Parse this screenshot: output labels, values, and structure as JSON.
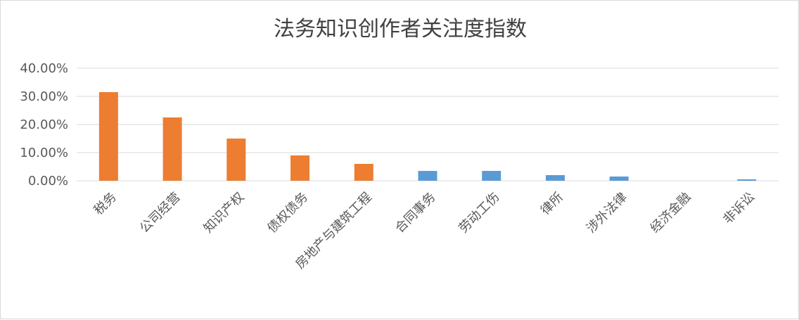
{
  "chart_data": {
    "type": "bar",
    "title": "法务知识创作者关注度指数",
    "xlabel": "",
    "ylabel": "",
    "ylim": [
      0,
      40
    ],
    "y_ticks": [
      "0.00%",
      "10.00%",
      "20.00%",
      "30.00%",
      "40.00%"
    ],
    "y_tick_values": [
      0,
      10,
      20,
      30,
      40
    ],
    "grid": true,
    "categories": [
      "税务",
      "公司经营",
      "知识产权",
      "债权债务",
      "房地产与建筑工程",
      "合同事务",
      "劳动工伤",
      "律所",
      "涉外法律",
      "经济金融",
      "非诉讼"
    ],
    "values": [
      31.5,
      22.5,
      15.0,
      9.0,
      6.0,
      3.5,
      3.5,
      2.0,
      1.5,
      0.0,
      0.5
    ],
    "bar_colors": [
      "#ed7d31",
      "#ed7d31",
      "#ed7d31",
      "#ed7d31",
      "#ed7d31",
      "#5b9bd5",
      "#5b9bd5",
      "#5b9bd5",
      "#5b9bd5",
      "#5b9bd5",
      "#5b9bd5"
    ]
  }
}
